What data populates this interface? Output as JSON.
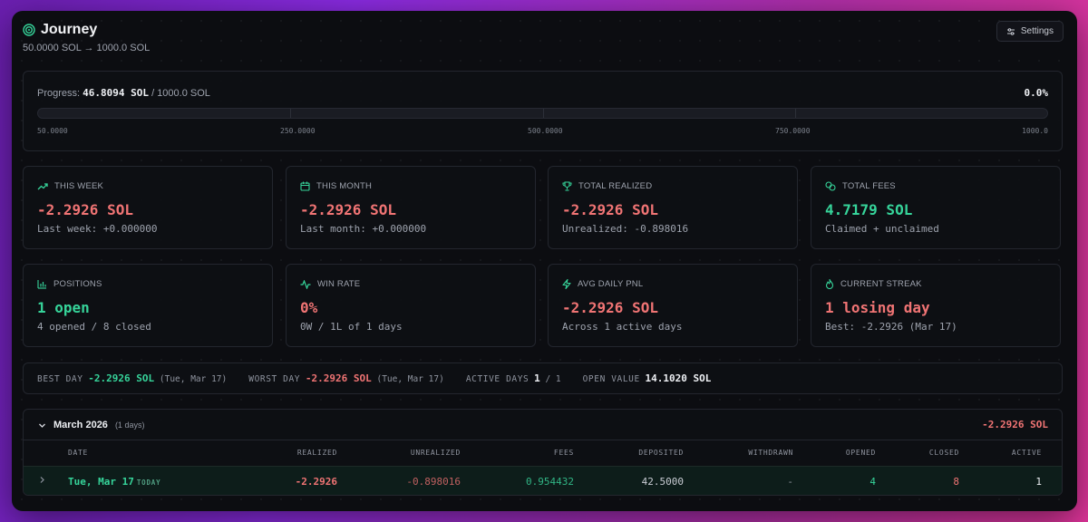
{
  "header": {
    "title": "Journey",
    "subtitle": "50.0000 SOL → 1000.0 SOL",
    "settings_label": "Settings"
  },
  "progress": {
    "label": "Progress:",
    "current": "46.8094 SOL",
    "sep": "/",
    "target": "1000.0 SOL",
    "percent": "0.0%",
    "fill_fraction": 0.0,
    "ticks": [
      "50.0000",
      "250.0000",
      "500.0000",
      "750.0000",
      "1000.0"
    ]
  },
  "cards": [
    {
      "icon": "trend-up-icon",
      "label": "THIS WEEK",
      "value": "-2.2926 SOL",
      "sub": "Last week: +0.000000",
      "tone": "red"
    },
    {
      "icon": "calendar-icon",
      "label": "THIS MONTH",
      "value": "-2.2926 SOL",
      "sub": "Last month: +0.000000",
      "tone": "red"
    },
    {
      "icon": "trophy-icon",
      "label": "TOTAL REALIZED",
      "value": "-2.2926 SOL",
      "sub": "Unrealized: -0.898016",
      "tone": "red"
    },
    {
      "icon": "coins-icon",
      "label": "TOTAL FEES",
      "value": "4.7179 SOL",
      "sub": "Claimed + unclaimed",
      "tone": "green"
    },
    {
      "icon": "bar-chart-icon",
      "label": "POSITIONS",
      "value": "1 open",
      "sub": "4 opened / 8 closed",
      "tone": "green"
    },
    {
      "icon": "activity-icon",
      "label": "WIN RATE",
      "value": "0%",
      "sub": "0W / 1L of 1 days",
      "tone": "red"
    },
    {
      "icon": "zap-icon",
      "label": "AVG DAILY PNL",
      "value": "-2.2926 SOL",
      "sub": "Across 1 active days",
      "tone": "red"
    },
    {
      "icon": "flame-icon",
      "label": "CURRENT STREAK",
      "value": "1 losing day",
      "sub": "Best: -2.2926 (Mar 17)",
      "tone": "red"
    }
  ],
  "summary": {
    "best_label": "BEST DAY",
    "best_value": "-2.2926 SOL",
    "best_date": "(Tue, Mar 17)",
    "worst_label": "WORST DAY",
    "worst_value": "-2.2926 SOL",
    "worst_date": "(Tue, Mar 17)",
    "active_label": "ACTIVE DAYS",
    "active_value": "1",
    "active_total": "/ 1",
    "open_label": "OPEN VALUE",
    "open_value": "14.1020 SOL"
  },
  "month": {
    "title": "March 2026",
    "count": "(1 days)",
    "total": "-2.2926 SOL",
    "columns": [
      "DATE",
      "REALIZED",
      "UNREALIZED",
      "FEES",
      "DEPOSITED",
      "WITHDRAWN",
      "OPENED",
      "CLOSED",
      "ACTIVE"
    ],
    "row": {
      "date": "Tue, Mar 17",
      "badge": "TODAY",
      "realized": "-2.2926",
      "unrealized": "-0.898016",
      "fees": "0.954432",
      "deposited": "42.5000",
      "withdrawn": "-",
      "opened": "4",
      "closed": "8",
      "active": "1"
    }
  },
  "colors": {
    "accent_green": "#36d49a",
    "negative_red": "#f07474",
    "background": "#0c0d11"
  }
}
